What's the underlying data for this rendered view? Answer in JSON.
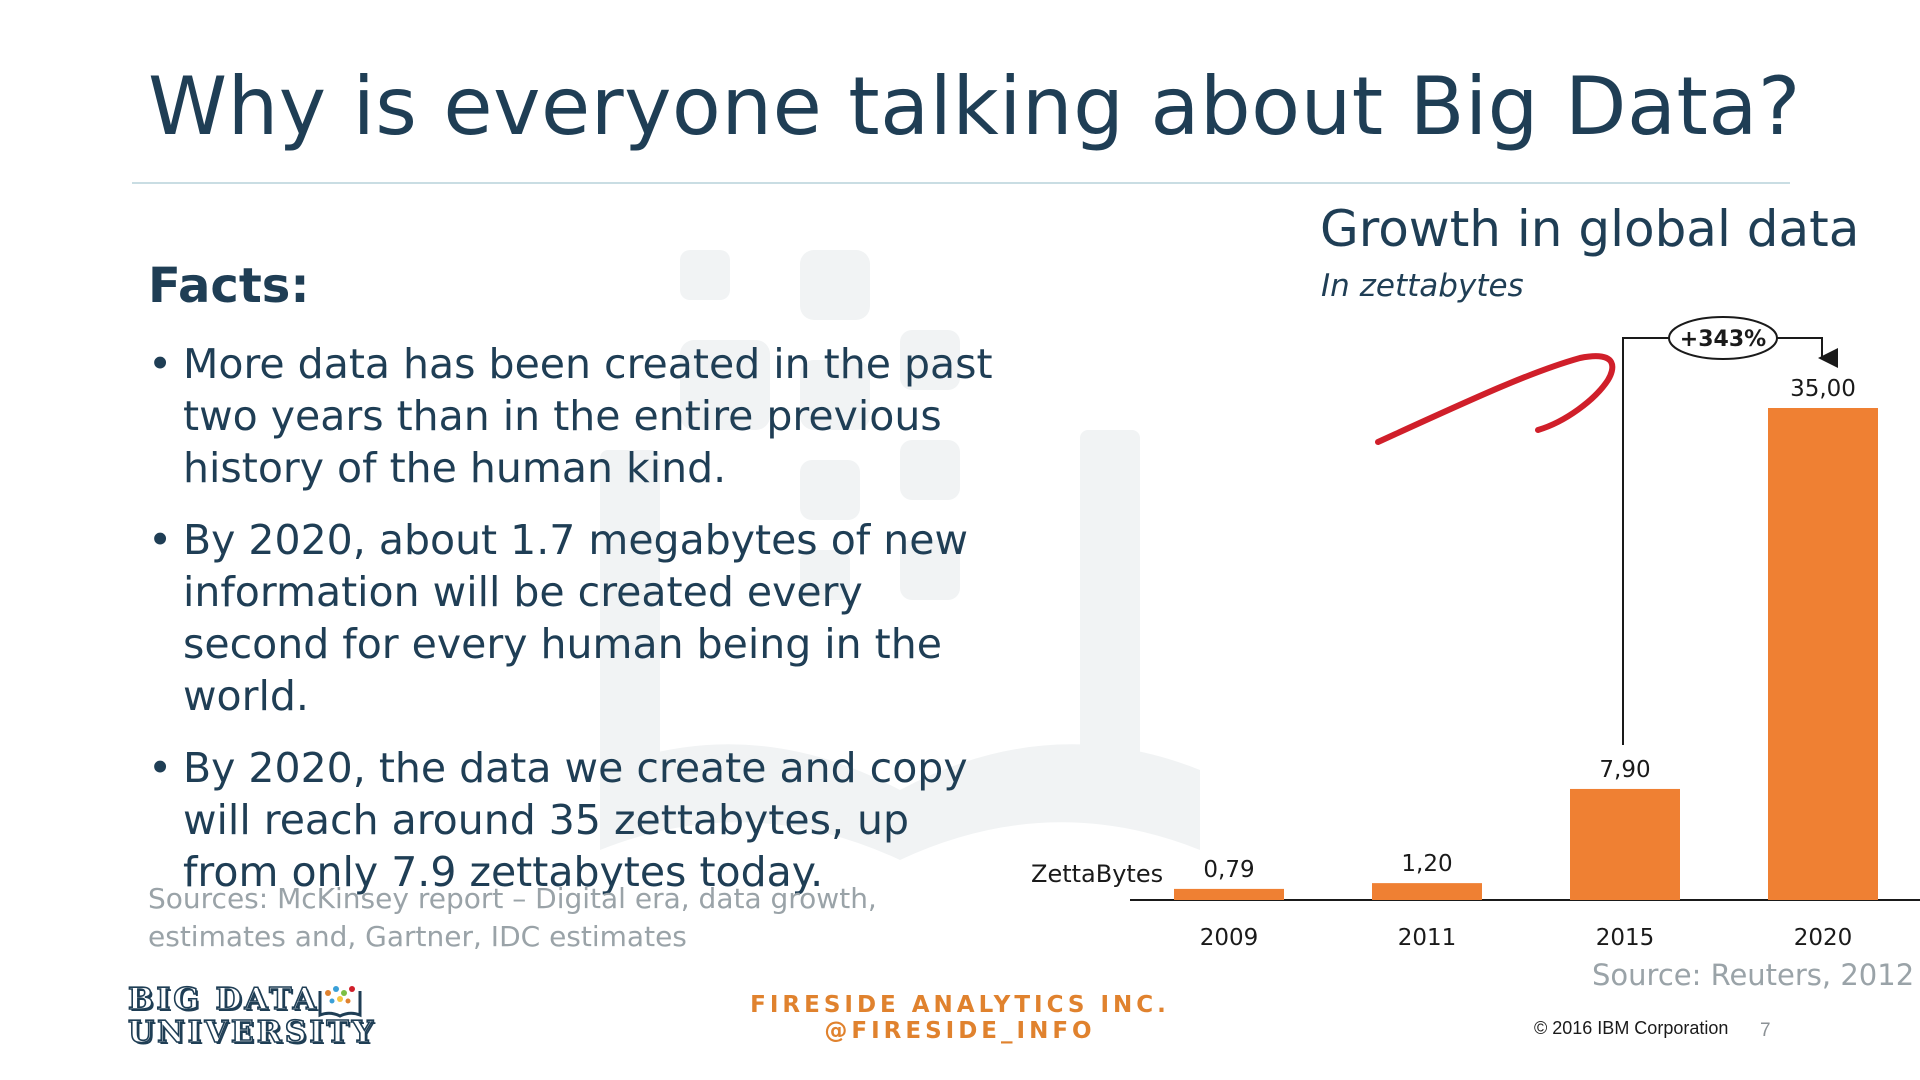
{
  "slide": {
    "title": "Why is everyone talking about Big Data?",
    "facts_heading": "Facts:",
    "bullets": [
      "More data has been created in the past two years than in the entire previous history of the human kind.",
      "By 2020, about 1.7 megabytes of new information will be created every second for every human being in the world.",
      "By 2020, the data we create and copy will reach around 35 zettabytes, up from only 7.9 zettabytes today."
    ],
    "sources": "Sources: McKinsey report – Digital era, data growth, estimates and, Gartner, IDC estimates",
    "chart_source": "Source: Reuters, 2012"
  },
  "chart_data": {
    "type": "bar",
    "title": "Growth in global data",
    "subtitle": "In zettabytes",
    "ylabel": "ZettaBytes",
    "categories": [
      "2009",
      "2011",
      "2015",
      "2020"
    ],
    "values": [
      0.79,
      1.2,
      7.9,
      35.0
    ],
    "value_labels": [
      "0,79",
      "1,20",
      "7,90",
      "35,00"
    ],
    "annotation": "+343%",
    "bar_color": "#ef8033",
    "grid": false
  },
  "footer": {
    "logo_line1": "BIG DATA",
    "logo_line2": "UNIVERSITY",
    "center_line1": "FIRESIDE ANALYTICS INC.",
    "center_line2": "@FIRESIDE_INFO",
    "copyright": "© 2016 IBM Corporation",
    "page_number": "7"
  },
  "colors": {
    "title": "#1f3e55",
    "accent_orange": "#e0822e",
    "muted_gray": "#9aa3a8",
    "annotation_red": "#d01f2a"
  }
}
